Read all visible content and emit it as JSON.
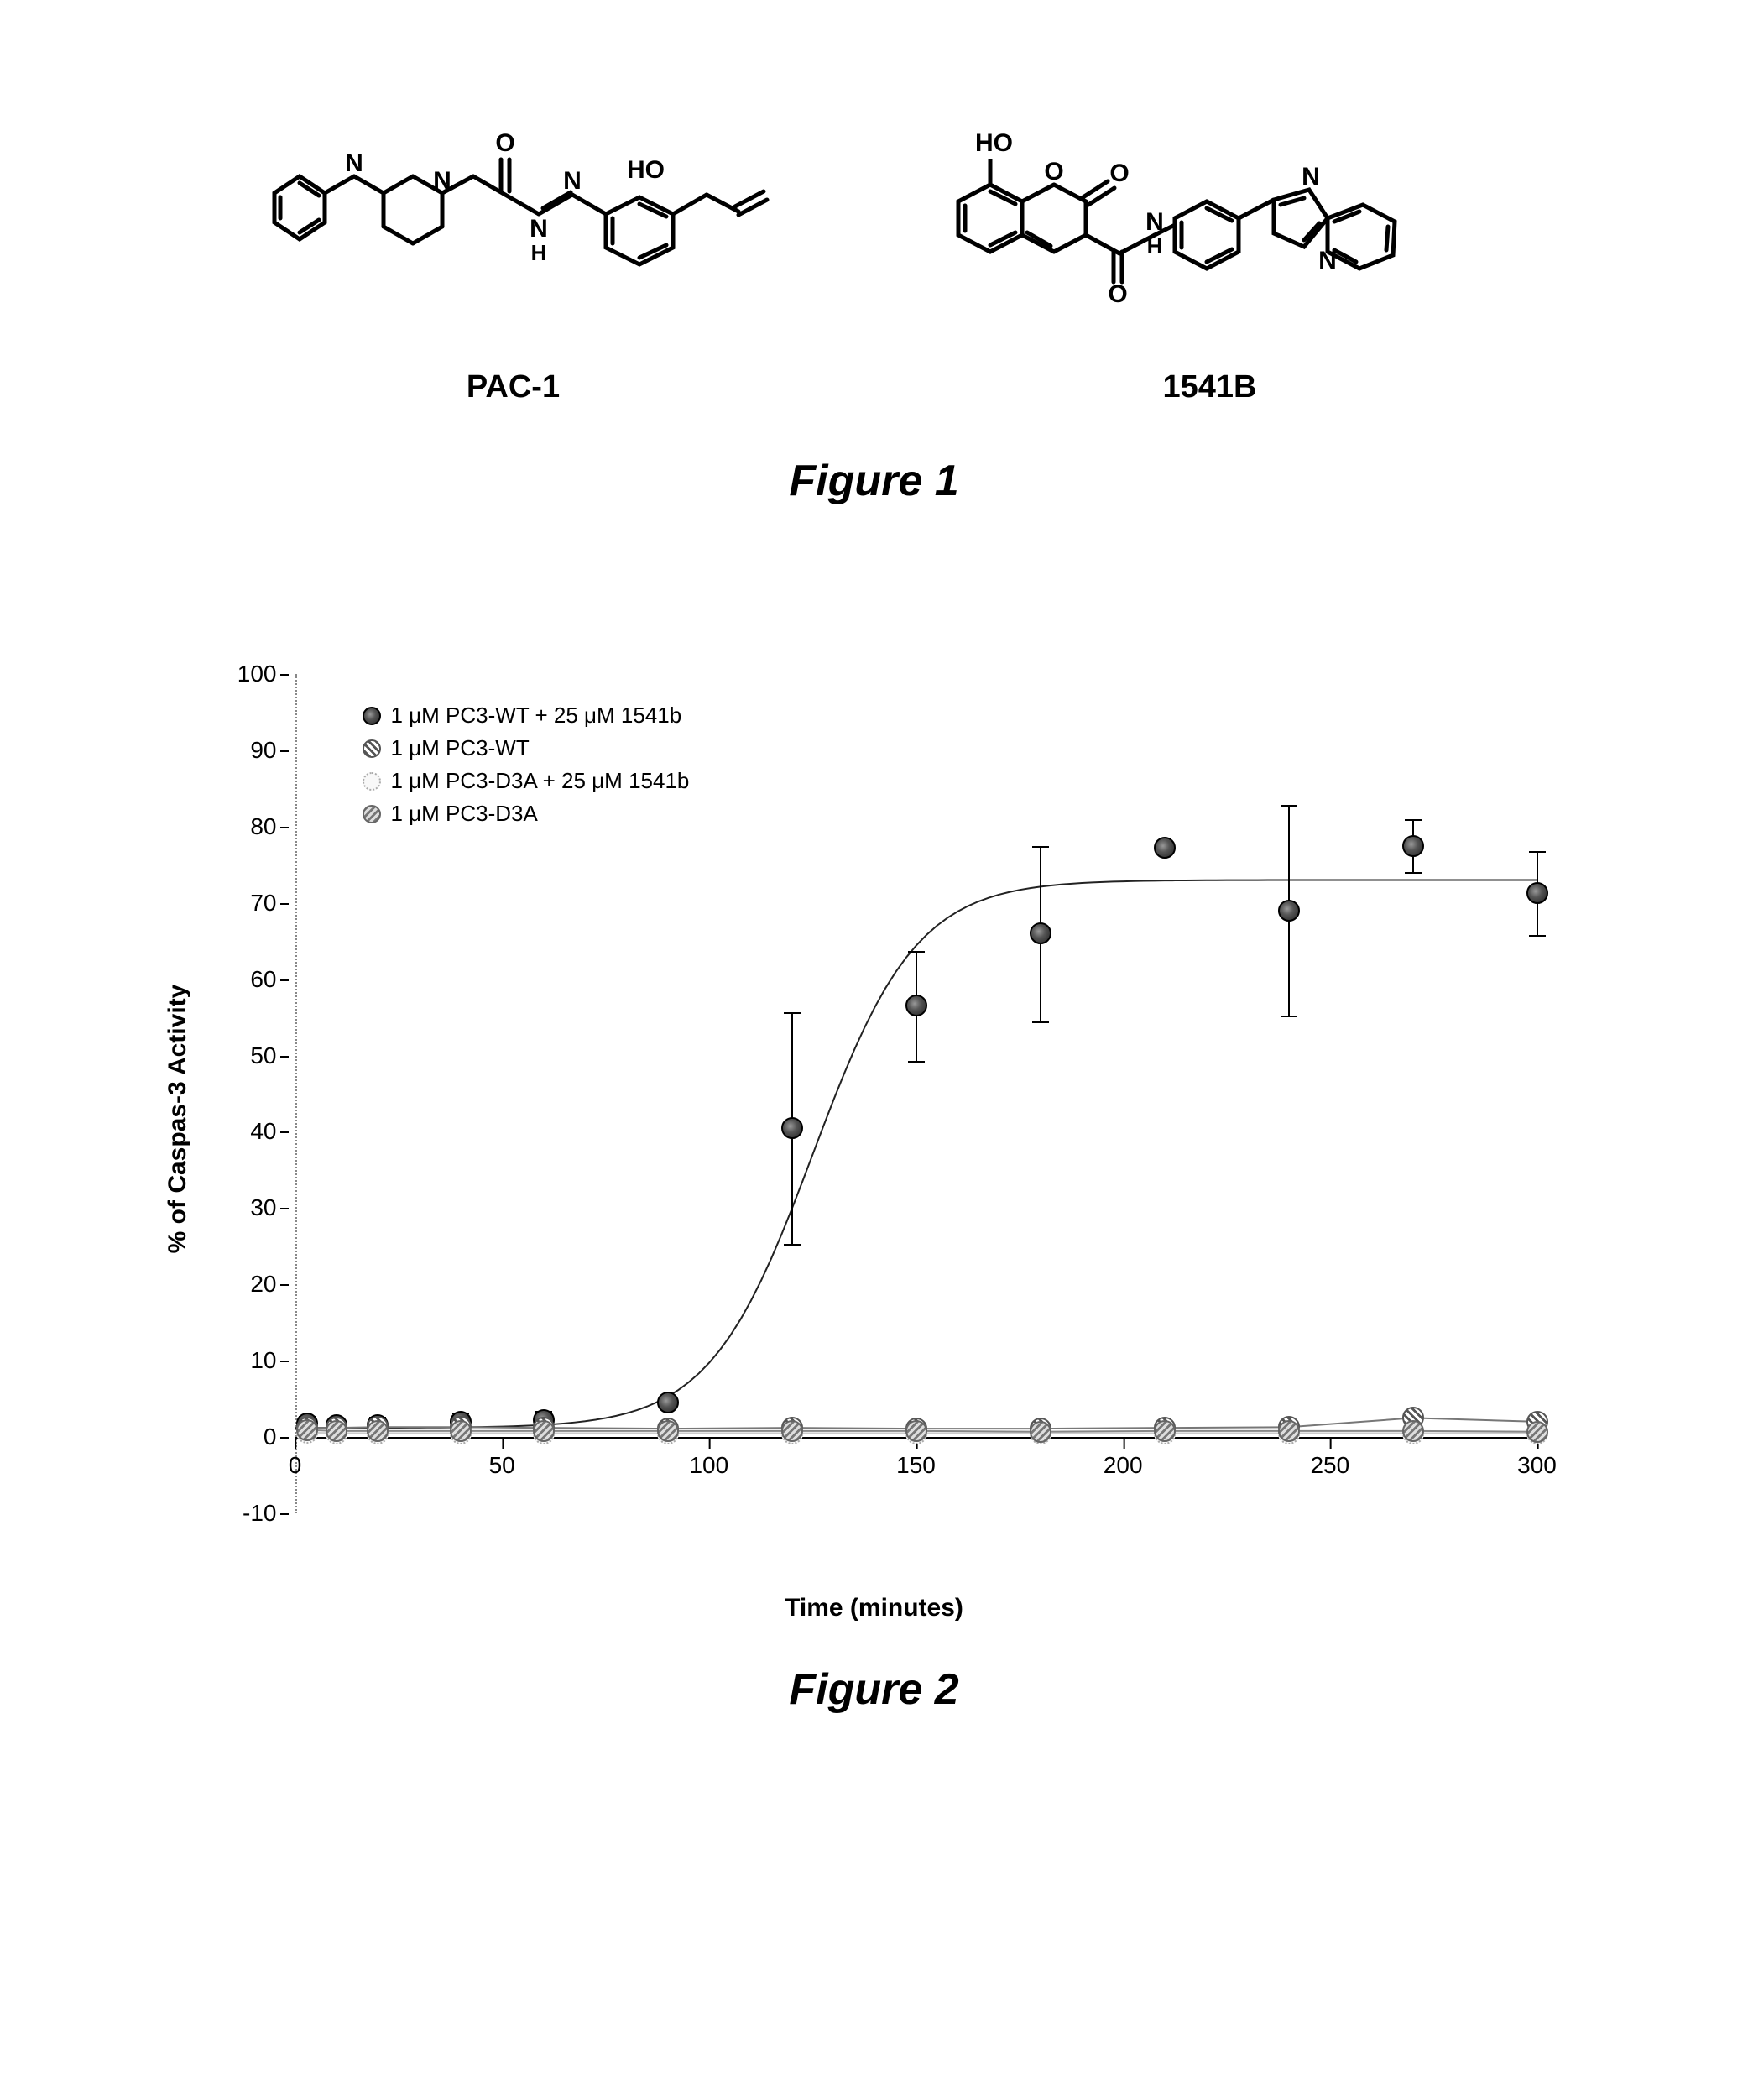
{
  "figure1": {
    "caption": "Figure 1",
    "structures": [
      {
        "label": "PAC-1"
      },
      {
        "label": "1541B"
      }
    ]
  },
  "figure2": {
    "caption": "Figure 2",
    "chart": {
      "type": "scatter-line",
      "background_color": "#ffffff",
      "xlabel": "Time (minutes)",
      "ylabel": "% of Caspas-3 Activity",
      "label_fontsize": 30,
      "tick_fontsize": 28,
      "xlim": [
        0,
        300
      ],
      "ylim": [
        -10,
        100
      ],
      "xticks": [
        0,
        50,
        100,
        150,
        200,
        250,
        300
      ],
      "yticks": [
        -10,
        0,
        10,
        20,
        30,
        40,
        50,
        60,
        70,
        80,
        90,
        100
      ],
      "y_zero_line": true,
      "legend": {
        "position": "upper-left",
        "items": [
          {
            "marker": "dark",
            "label": "1 μM PC3-WT + 25 μM 1541b"
          },
          {
            "marker": "stripe",
            "label": "1 μM PC3-WT"
          },
          {
            "marker": "light",
            "label": "1 μM PC3-D3A + 25 μM 1541b"
          },
          {
            "marker": "grey",
            "label": "1 μM PC3-D3A"
          }
        ]
      },
      "series": [
        {
          "name": "PC3-WT + 1541b",
          "marker": "dark",
          "color": "#222222",
          "line_width": 2,
          "curve_type": "sigmoid",
          "sigmoid": {
            "bottom": 1.2,
            "top": 73,
            "midpoint": 125,
            "slope": 0.08
          },
          "points": [
            {
              "x": 3,
              "y": 1.8,
              "err": 1.0
            },
            {
              "x": 10,
              "y": 1.5,
              "err": 1.0
            },
            {
              "x": 20,
              "y": 1.6,
              "err": 1.0
            },
            {
              "x": 40,
              "y": 2.0,
              "err": 1.2
            },
            {
              "x": 60,
              "y": 2.2,
              "err": 1.2
            },
            {
              "x": 90,
              "y": 4.5,
              "err": 0.0
            },
            {
              "x": 120,
              "y": 40.5,
              "err": 15.2
            },
            {
              "x": 150,
              "y": 56.5,
              "err": 7.2
            },
            {
              "x": 180,
              "y": 66.0,
              "err": 11.5
            },
            {
              "x": 210,
              "y": 77.2,
              "err": 0.0
            },
            {
              "x": 240,
              "y": 69.0,
              "err": 13.8
            },
            {
              "x": 270,
              "y": 77.5,
              "err": 3.5
            },
            {
              "x": 300,
              "y": 71.3,
              "err": 5.5
            }
          ]
        },
        {
          "name": "PC3-WT",
          "marker": "stripe",
          "color": "#777777",
          "line_width": 2,
          "curve_type": "flat",
          "points": [
            {
              "x": 3,
              "y": 1.2
            },
            {
              "x": 10,
              "y": 1.2
            },
            {
              "x": 20,
              "y": 1.3
            },
            {
              "x": 40,
              "y": 1.3
            },
            {
              "x": 60,
              "y": 1.2
            },
            {
              "x": 90,
              "y": 1.1
            },
            {
              "x": 120,
              "y": 1.2
            },
            {
              "x": 150,
              "y": 1.1
            },
            {
              "x": 180,
              "y": 1.1
            },
            {
              "x": 210,
              "y": 1.2
            },
            {
              "x": 240,
              "y": 1.3
            },
            {
              "x": 270,
              "y": 2.5
            },
            {
              "x": 300,
              "y": 2.0
            }
          ]
        },
        {
          "name": "PC3-D3A + 1541b",
          "marker": "light",
          "color": "#cccccc",
          "line_width": 2,
          "curve_type": "flat",
          "points": [
            {
              "x": 3,
              "y": 0.6
            },
            {
              "x": 10,
              "y": 0.5
            },
            {
              "x": 20,
              "y": 0.5
            },
            {
              "x": 40,
              "y": 0.5
            },
            {
              "x": 60,
              "y": 0.5
            },
            {
              "x": 90,
              "y": 0.5
            },
            {
              "x": 120,
              "y": 0.5
            },
            {
              "x": 150,
              "y": 0.5
            },
            {
              "x": 180,
              "y": 0.5
            },
            {
              "x": 210,
              "y": 0.5
            },
            {
              "x": 240,
              "y": 0.5
            },
            {
              "x": 270,
              "y": 0.5
            },
            {
              "x": 300,
              "y": 0.5
            }
          ]
        },
        {
          "name": "PC3-D3A",
          "marker": "grey",
          "color": "#888888",
          "line_width": 2,
          "curve_type": "flat",
          "points": [
            {
              "x": 3,
              "y": 0.9
            },
            {
              "x": 10,
              "y": 0.8
            },
            {
              "x": 20,
              "y": 0.8
            },
            {
              "x": 40,
              "y": 0.8
            },
            {
              "x": 60,
              "y": 0.8
            },
            {
              "x": 90,
              "y": 0.8
            },
            {
              "x": 120,
              "y": 0.8
            },
            {
              "x": 150,
              "y": 0.8
            },
            {
              "x": 180,
              "y": 0.7
            },
            {
              "x": 210,
              "y": 0.8
            },
            {
              "x": 240,
              "y": 0.8
            },
            {
              "x": 270,
              "y": 0.8
            },
            {
              "x": 300,
              "y": 0.7
            }
          ]
        }
      ]
    }
  }
}
